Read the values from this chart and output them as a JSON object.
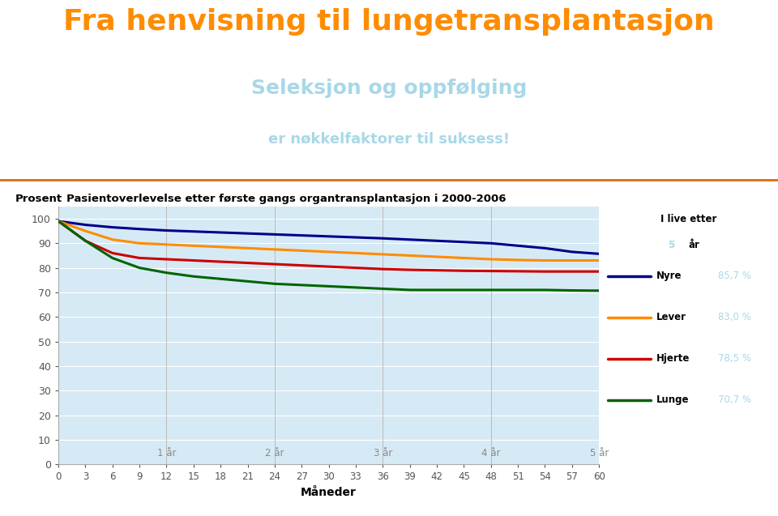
{
  "title": "Fra henvisning til lungetransplantasjon",
  "title_color": "#FF8C00",
  "subtitle1": "Seleksjon og oppfølging",
  "subtitle2": "er nøkkelfaktorer til suksess!",
  "subtitle_color": "#A8D8E8",
  "header_bg": "#FEF0E6",
  "chart_bg": "#D6EAF5",
  "chart_title": "Pasientoverlevelse etter første gangs organtransplantasjon i 2000-2006",
  "xlabel": "Måneder",
  "ylabel": "Prosent",
  "x_ticks": [
    0,
    3,
    6,
    9,
    12,
    15,
    18,
    21,
    24,
    27,
    30,
    33,
    36,
    39,
    42,
    45,
    48,
    51,
    54,
    57,
    60
  ],
  "year_labels": [
    {
      "x": 12,
      "label": "1 år"
    },
    {
      "x": 24,
      "label": "2 år"
    },
    {
      "x": 36,
      "label": "3 år"
    },
    {
      "x": 48,
      "label": "4 år"
    },
    {
      "x": 60,
      "label": "5 år"
    }
  ],
  "ylim": [
    0,
    105
  ],
  "series": {
    "Nyre": {
      "color": "#00008B",
      "values": [
        [
          0,
          99
        ],
        [
          3,
          97.5
        ],
        [
          6,
          96.5
        ],
        [
          9,
          95.8
        ],
        [
          12,
          95.2
        ],
        [
          15,
          94.8
        ],
        [
          18,
          94.4
        ],
        [
          21,
          94.0
        ],
        [
          24,
          93.6
        ],
        [
          27,
          93.2
        ],
        [
          30,
          92.8
        ],
        [
          33,
          92.4
        ],
        [
          36,
          92.0
        ],
        [
          39,
          91.5
        ],
        [
          42,
          91.0
        ],
        [
          45,
          90.5
        ],
        [
          48,
          90.0
        ],
        [
          51,
          89.0
        ],
        [
          54,
          88.0
        ],
        [
          57,
          86.5
        ],
        [
          60,
          85.7
        ]
      ],
      "pct": "85,7 %"
    },
    "Lever": {
      "color": "#FF8C00",
      "values": [
        [
          0,
          99
        ],
        [
          3,
          95
        ],
        [
          6,
          91.5
        ],
        [
          9,
          90
        ],
        [
          12,
          89.5
        ],
        [
          15,
          89
        ],
        [
          18,
          88.5
        ],
        [
          21,
          88
        ],
        [
          24,
          87.5
        ],
        [
          27,
          87
        ],
        [
          30,
          86.5
        ],
        [
          33,
          86
        ],
        [
          36,
          85.5
        ],
        [
          39,
          85
        ],
        [
          42,
          84.5
        ],
        [
          45,
          84
        ],
        [
          48,
          83.5
        ],
        [
          51,
          83.2
        ],
        [
          54,
          83
        ],
        [
          57,
          83
        ],
        [
          60,
          83.0
        ]
      ],
      "pct": "83,0 %"
    },
    "Hjerte": {
      "color": "#CC0000",
      "values": [
        [
          0,
          99
        ],
        [
          3,
          91
        ],
        [
          6,
          86
        ],
        [
          9,
          84
        ],
        [
          12,
          83.5
        ],
        [
          15,
          83
        ],
        [
          18,
          82.5
        ],
        [
          21,
          82
        ],
        [
          24,
          81.5
        ],
        [
          27,
          81
        ],
        [
          30,
          80.5
        ],
        [
          33,
          80
        ],
        [
          36,
          79.5
        ],
        [
          39,
          79.2
        ],
        [
          42,
          79
        ],
        [
          45,
          78.8
        ],
        [
          48,
          78.7
        ],
        [
          51,
          78.6
        ],
        [
          54,
          78.5
        ],
        [
          57,
          78.5
        ],
        [
          60,
          78.5
        ]
      ],
      "pct": "78,5 %"
    },
    "Lunge": {
      "color": "#006400",
      "values": [
        [
          0,
          99
        ],
        [
          3,
          91
        ],
        [
          6,
          84
        ],
        [
          9,
          80
        ],
        [
          12,
          78
        ],
        [
          15,
          76.5
        ],
        [
          18,
          75.5
        ],
        [
          21,
          74.5
        ],
        [
          24,
          73.5
        ],
        [
          27,
          73
        ],
        [
          30,
          72.5
        ],
        [
          33,
          72
        ],
        [
          36,
          71.5
        ],
        [
          39,
          71
        ],
        [
          42,
          71
        ],
        [
          45,
          71
        ],
        [
          48,
          71
        ],
        [
          51,
          71
        ],
        [
          54,
          71
        ],
        [
          57,
          70.8
        ],
        [
          60,
          70.7
        ]
      ],
      "pct": "70,7 %"
    }
  },
  "legend_pct_color": "#A8D8E8",
  "legend_bg": "#E8E8E8"
}
